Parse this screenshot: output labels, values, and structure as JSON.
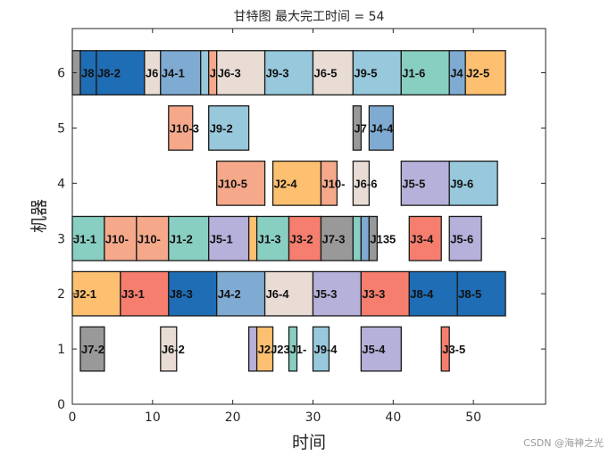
{
  "chart_data": {
    "type": "gantt",
    "title": "甘特图 最大完工时间 = 54",
    "xlabel": "时间",
    "ylabel": "机器",
    "xlim": [
      0,
      59
    ],
    "ylim": [
      0,
      6.8
    ],
    "xticks": [
      0,
      10,
      20,
      30,
      40,
      50
    ],
    "yticks": [
      0,
      1,
      2,
      3,
      4,
      5,
      6
    ],
    "grid": false,
    "colors": {
      "J1": "#88cfc2",
      "J2": "#fdc070",
      "J3": "#f67e6e",
      "J4": "#7fabd3",
      "J5": "#b5b1da",
      "J6": "#e8dcd4",
      "J7": "#999999",
      "J8": "#1f6db4",
      "J9": "#97c8dc",
      "J10": "#f5a98a"
    },
    "tasks": [
      {
        "machine": 6,
        "start": 0,
        "end": 1,
        "job": "J7",
        "label": ""
      },
      {
        "machine": 6,
        "start": 1,
        "end": 3,
        "job": "J8",
        "label": "J8"
      },
      {
        "machine": 6,
        "start": 3,
        "end": 9,
        "job": "J8",
        "label": "J8-2"
      },
      {
        "machine": 6,
        "start": 9,
        "end": 11,
        "job": "J6",
        "label": "J6"
      },
      {
        "machine": 6,
        "start": 11,
        "end": 16,
        "job": "J4",
        "label": "J4-1"
      },
      {
        "machine": 6,
        "start": 16,
        "end": 17,
        "job": "J9",
        "label": ""
      },
      {
        "machine": 6,
        "start": 17,
        "end": 18,
        "job": "J10",
        "label": "J"
      },
      {
        "machine": 6,
        "start": 18,
        "end": 24,
        "job": "J6",
        "label": "J6-3"
      },
      {
        "machine": 6,
        "start": 24,
        "end": 30,
        "job": "J9",
        "label": "J9-3"
      },
      {
        "machine": 6,
        "start": 30,
        "end": 35,
        "job": "J6",
        "label": "J6-5"
      },
      {
        "machine": 6,
        "start": 35,
        "end": 41,
        "job": "J9",
        "label": "J9-5"
      },
      {
        "machine": 6,
        "start": 41,
        "end": 47,
        "job": "J1",
        "label": "J1-6"
      },
      {
        "machine": 6,
        "start": 47,
        "end": 49,
        "job": "J4",
        "label": "J4"
      },
      {
        "machine": 6,
        "start": 49,
        "end": 54,
        "job": "J2",
        "label": "J2-5"
      },
      {
        "machine": 5,
        "start": 12,
        "end": 15,
        "job": "J10",
        "label": "J10-3"
      },
      {
        "machine": 5,
        "start": 17,
        "end": 22,
        "job": "J9",
        "label": "J9-2"
      },
      {
        "machine": 5,
        "start": 35,
        "end": 36,
        "job": "J7",
        "label": "J7"
      },
      {
        "machine": 5,
        "start": 37,
        "end": 40,
        "job": "J4",
        "label": "J4-4"
      },
      {
        "machine": 4,
        "start": 18,
        "end": 24,
        "job": "J10",
        "label": "J10-5"
      },
      {
        "machine": 4,
        "start": 25,
        "end": 31,
        "job": "J2",
        "label": "J2-4"
      },
      {
        "machine": 4,
        "start": 31,
        "end": 33,
        "job": "J10",
        "label": "J10-"
      },
      {
        "machine": 4,
        "start": 35,
        "end": 37,
        "job": "J6",
        "label": "J6-6"
      },
      {
        "machine": 4,
        "start": 41,
        "end": 47,
        "job": "J5",
        "label": "J5-5"
      },
      {
        "machine": 4,
        "start": 47,
        "end": 53,
        "job": "J9",
        "label": "J9-6"
      },
      {
        "machine": 3,
        "start": 0,
        "end": 4,
        "job": "J1",
        "label": "J1-1"
      },
      {
        "machine": 3,
        "start": 4,
        "end": 8,
        "job": "J10",
        "label": "J10-"
      },
      {
        "machine": 3,
        "start": 8,
        "end": 12,
        "job": "J10",
        "label": "J10-"
      },
      {
        "machine": 3,
        "start": 12,
        "end": 17,
        "job": "J1",
        "label": "J1-2"
      },
      {
        "machine": 3,
        "start": 17,
        "end": 22,
        "job": "J5",
        "label": "J5-1"
      },
      {
        "machine": 3,
        "start": 22,
        "end": 23,
        "job": "J2",
        "label": ""
      },
      {
        "machine": 3,
        "start": 23,
        "end": 27,
        "job": "J1",
        "label": "J1-3"
      },
      {
        "machine": 3,
        "start": 27,
        "end": 31,
        "job": "J3",
        "label": "J3-2"
      },
      {
        "machine": 3,
        "start": 31,
        "end": 35,
        "job": "J7",
        "label": "J7-3"
      },
      {
        "machine": 3,
        "start": 35,
        "end": 36,
        "job": "J1",
        "label": ""
      },
      {
        "machine": 3,
        "start": 36,
        "end": 37,
        "job": "J4",
        "label": ""
      },
      {
        "machine": 3,
        "start": 37,
        "end": 38,
        "job": "J7",
        "label": "J135"
      },
      {
        "machine": 3,
        "start": 42,
        "end": 46,
        "job": "J3",
        "label": "J3-4"
      },
      {
        "machine": 3,
        "start": 47,
        "end": 51,
        "job": "J5",
        "label": "J5-6"
      },
      {
        "machine": 2,
        "start": 0,
        "end": 6,
        "job": "J2",
        "label": "J2-1"
      },
      {
        "machine": 2,
        "start": 6,
        "end": 12,
        "job": "J3",
        "label": "J3-1"
      },
      {
        "machine": 2,
        "start": 12,
        "end": 18,
        "job": "J8",
        "label": "J8-3"
      },
      {
        "machine": 2,
        "start": 18,
        "end": 24,
        "job": "J4",
        "label": "J4-2"
      },
      {
        "machine": 2,
        "start": 24,
        "end": 30,
        "job": "J6",
        "label": "J6-4"
      },
      {
        "machine": 2,
        "start": 30,
        "end": 36,
        "job": "J5",
        "label": "J5-3"
      },
      {
        "machine": 2,
        "start": 36,
        "end": 42,
        "job": "J3",
        "label": "J3-3"
      },
      {
        "machine": 2,
        "start": 42,
        "end": 48,
        "job": "J8",
        "label": "J8-4"
      },
      {
        "machine": 2,
        "start": 48,
        "end": 54,
        "job": "J8",
        "label": "J8-5"
      },
      {
        "machine": 1,
        "start": 1,
        "end": 4,
        "job": "J7",
        "label": "J7-2"
      },
      {
        "machine": 1,
        "start": 11,
        "end": 13,
        "job": "J6",
        "label": "J6-2"
      },
      {
        "machine": 1,
        "start": 22,
        "end": 23,
        "job": "J5",
        "label": ""
      },
      {
        "machine": 1,
        "start": 23,
        "end": 25,
        "job": "J2",
        "label": "J2J23"
      },
      {
        "machine": 1,
        "start": 27,
        "end": 28,
        "job": "J1",
        "label": "J1-"
      },
      {
        "machine": 1,
        "start": 30,
        "end": 32,
        "job": "J9",
        "label": "J9-4"
      },
      {
        "machine": 1,
        "start": 36,
        "end": 41,
        "job": "J5",
        "label": "J5-4"
      },
      {
        "machine": 1,
        "start": 46,
        "end": 47,
        "job": "J3",
        "label": "J3-5"
      }
    ]
  },
  "watermark": "CSDN @海神之光"
}
